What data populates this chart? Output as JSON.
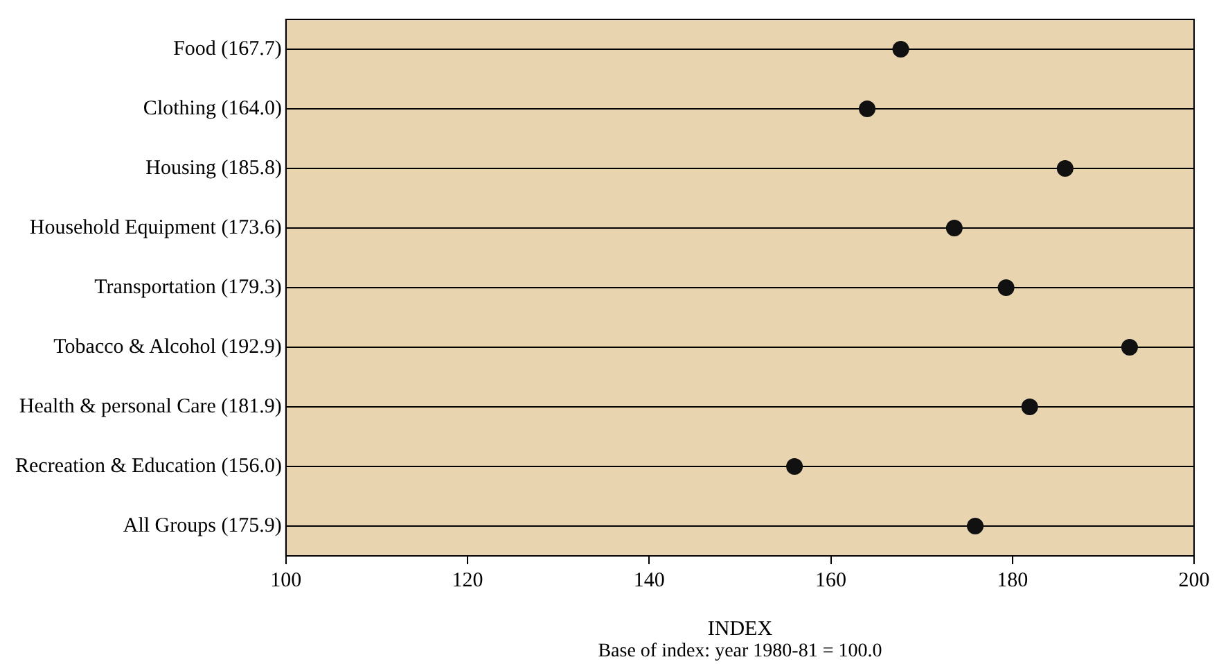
{
  "chart_data": {
    "type": "scatter",
    "orientation": "horizontal",
    "categories": [
      "Food (167.7)",
      "Clothing (164.0)",
      "Housing (185.8)",
      "Household Equipment (173.6)",
      "Transportation (179.3)",
      "Tobacco & Alcohol (192.9)",
      "Health & personal Care (181.9)",
      "Recreation & Education (156.0)",
      "All Groups (175.9)"
    ],
    "series": [
      {
        "color": "#111111",
        "values": [
          167.7,
          164.0,
          185.8,
          173.6,
          179.3,
          192.9,
          181.9,
          156.0,
          175.9
        ]
      }
    ],
    "xlim": [
      100,
      200
    ],
    "xticks": [
      100,
      120,
      140,
      160,
      180,
      200
    ],
    "xlabel": "INDEX",
    "annotations": [
      "Base of index: year 1980-81 = 100.0"
    ],
    "grid": "y",
    "legend": false,
    "marker": "circle"
  }
}
